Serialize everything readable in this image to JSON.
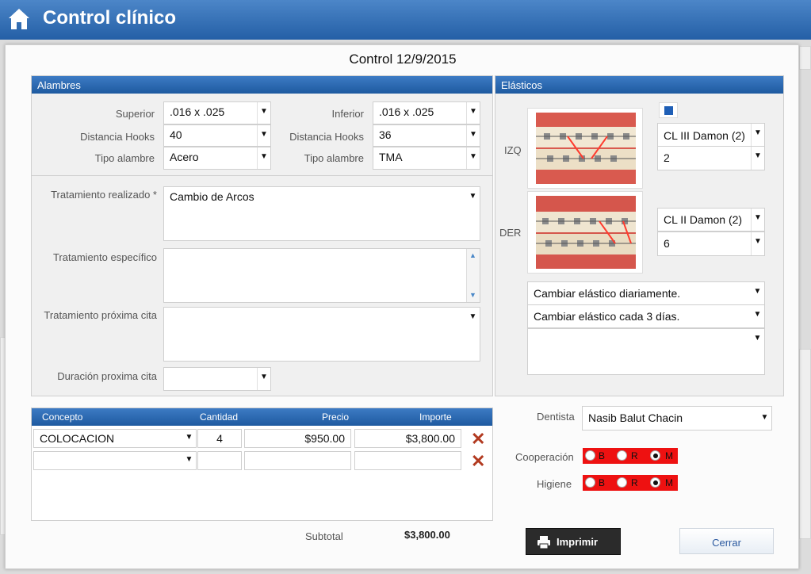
{
  "header": {
    "title": "Control clínico"
  },
  "dialog": {
    "title": "Control 12/9/2015"
  },
  "alambres": {
    "heading": "Alambres",
    "superior_label": "Superior",
    "superior_value": ".016 x .025",
    "inferior_label": "Inferior",
    "inferior_value": ".016 x .025",
    "dist_sup_label": "Distancia Hooks",
    "dist_sup_value": "40",
    "dist_inf_label": "Distancia Hooks",
    "dist_inf_value": "36",
    "tipo_sup_label": "Tipo alambre",
    "tipo_sup_value": "Acero",
    "tipo_inf_label": "Tipo alambre",
    "tipo_inf_value": "TMA",
    "trat_realizado_label": "Tratamiento realizado *",
    "trat_realizado_value": "Cambio de Arcos",
    "trat_especifico_label": "Tratamiento específico",
    "trat_especifico_value": "",
    "trat_proxima_label": "Tratamiento próxima cita",
    "trat_proxima_value": "",
    "duracion_label": "Duración proxima cita",
    "duracion_value": ""
  },
  "elasticos": {
    "heading": "Elásticos",
    "izq_label": "IZQ",
    "der_label": "DER",
    "izq_type": "CL III Damon (2)",
    "izq_count": "2",
    "der_type": "CL II Damon (2)",
    "der_count": "6",
    "instr1": "Cambiar elástico diariamente.",
    "instr2": "Cambiar elástico cada 3 días.",
    "instr3": ""
  },
  "conceptos": {
    "headers": [
      "Concepto",
      "Cantidad",
      "Precio",
      "Importe"
    ],
    "rows": [
      {
        "concepto": "COLOCACION",
        "cantidad": "4",
        "precio": "$950.00",
        "importe": "$3,800.00"
      },
      {
        "concepto": "",
        "cantidad": "",
        "precio": "",
        "importe": ""
      }
    ],
    "subtotal_label": "Subtotal",
    "subtotal_value": "$3,800.00"
  },
  "dentista": {
    "label": "Dentista",
    "value": "Nasib Balut Chacin"
  },
  "cooperacion": {
    "label": "Cooperación",
    "options": [
      "B",
      "R",
      "M"
    ],
    "selected": "M"
  },
  "higiene": {
    "label": "Higiene",
    "options": [
      "B",
      "R",
      "M"
    ],
    "selected": "M"
  },
  "buttons": {
    "print": "Imprimir",
    "close": "Cerrar"
  },
  "colors": {
    "header": "#2c67ae",
    "radio_bg": "#ee1111",
    "delete": "#b23a20"
  }
}
